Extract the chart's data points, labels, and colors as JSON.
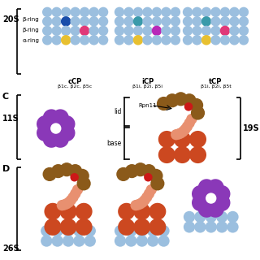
{
  "bg_color": "#ffffff",
  "label_20S": "20S",
  "label_11S": "11S",
  "label_C": "C",
  "label_D": "D",
  "label_26S": "26S",
  "label_19S": "19S",
  "label_cCP": "cCP",
  "label_cCP_sub": "β1c, β2c, β5c",
  "label_iCP": "iCP",
  "label_iCP_sub": "β1i, β2i, β5i",
  "label_tCP": "tCP",
  "label_tCP_sub": "β1i, β2i, β5t",
  "label_beta_ring": "β-ring",
  "label_alpha_ring": "α-ring",
  "label_lid": "lid",
  "label_base": "base",
  "label_Rpn11": "Rpn11",
  "color_light_blue": "#9bbfdf",
  "color_blue": "#1a4eaa",
  "color_teal": "#3a9aaa",
  "color_yellow": "#e8c030",
  "color_pink": "#e03878",
  "color_magenta": "#b828b8",
  "color_purple": "#8a38b8",
  "color_brown": "#8b5a1a",
  "color_orange_red": "#cc4820",
  "color_red": "#cc1818",
  "color_salmon": "#e07060",
  "color_light_salmon": "#e89070"
}
